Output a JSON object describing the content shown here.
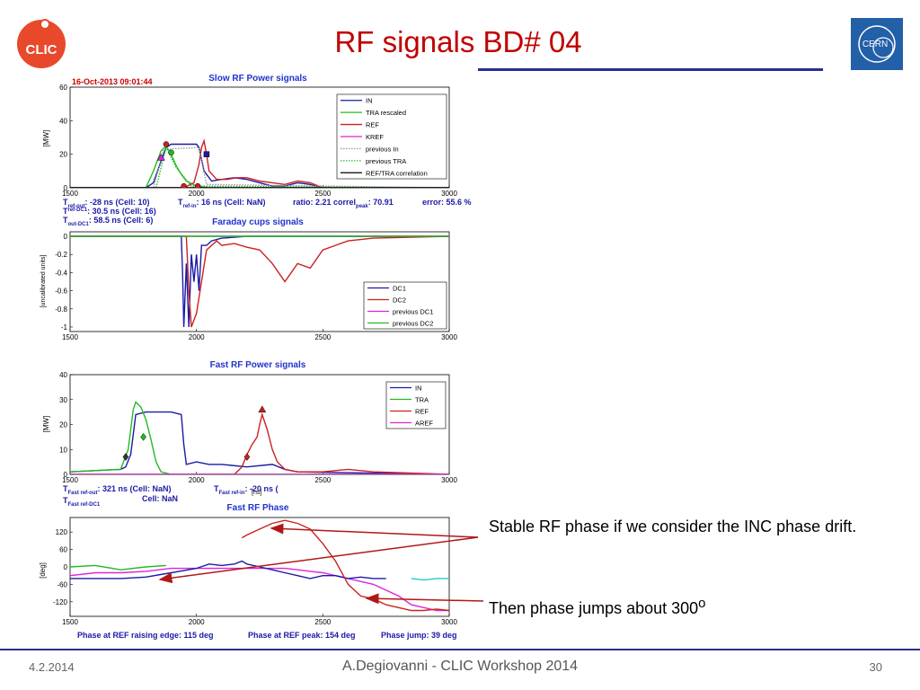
{
  "slide": {
    "title": "RF signals BD# 04",
    "annotation_1": "Stable RF phase if we consider the INC phase drift.",
    "annotation_2_prefix": "Then phase jumps about 300",
    "annotation_2_sup": "o",
    "clic_logo_text": "CLIC",
    "cern_logo_text": "CERN",
    "footer": {
      "date": "4.2.2014",
      "center": "A.Degiovanni - CLIC Workshop 2014",
      "page": "30"
    }
  },
  "header": {
    "timestamp": "16-Oct-2013   09:01:44"
  },
  "text_rows": {
    "row1": [
      "T",
      "ref-out",
      ": -28 ns (Cell: 10)",
      "T",
      "ref-in",
      ": 16 ns (Cell: NaN)",
      "ratio: 2.21  correl",
      "peak",
      ": 70.91",
      "error: 55.6 %"
    ],
    "row2": [
      "T",
      "ref-DC1",
      ": 30.5 ns (Cell: 16)"
    ],
    "row3": [
      "T",
      "out-DC1",
      ": 58.5 ns (Cell: 6)"
    ],
    "row4": [
      "T",
      "Fast ref-out",
      ": 321 ns   (Cell: NaN)",
      "T",
      "Fast ref-in",
      ": -20 ns (",
      "[ns]"
    ],
    "row5": [
      "T",
      "Fast ref-DC1",
      "Cell: NaN"
    ],
    "bottom": [
      "Phase at REF raising edge: 115 deg",
      "Phase at REF peak: 154 deg",
      "Phase jump: 39 deg"
    ]
  },
  "colors": {
    "blue": "#1a1aa6",
    "green": "#22bb22",
    "red": "#cc2020",
    "magenta": "#dd22dd",
    "cyan": "#22cccc",
    "title_blue": "#2233cc",
    "date_red": "#cc0000"
  },
  "chart_data": [
    {
      "type": "line",
      "title": "Slow RF Power signals",
      "ylabel": "[MW]",
      "xlim": [
        1500,
        3000
      ],
      "ylim": [
        0,
        60
      ],
      "x_ticks": [
        "1500",
        "2000",
        "2500",
        "3000"
      ],
      "y_ticks": [
        "0",
        "20",
        "40",
        "60"
      ],
      "legend_position": "top-right",
      "series": [
        {
          "name": "IN",
          "color": "#1a1aa6",
          "x": [
            1500,
            1800,
            1830,
            1860,
            1880,
            1900,
            1950,
            2000,
            2010,
            2030,
            2060,
            2100,
            2150,
            2200,
            2250,
            2300,
            2350,
            2400,
            2450,
            2500,
            3000
          ],
          "y": [
            0,
            0,
            3,
            16,
            24,
            26,
            26,
            26,
            24,
            10,
            4,
            5,
            6,
            5,
            3,
            1,
            1,
            3,
            2,
            0,
            0
          ]
        },
        {
          "name": "TRA rescaled",
          "color": "#22bb22",
          "x": [
            1500,
            1800,
            1830,
            1860,
            1880,
            1900,
            1920,
            1940,
            1960,
            2000,
            2050,
            3000
          ],
          "y": [
            0,
            0,
            10,
            22,
            25,
            20,
            13,
            8,
            4,
            1,
            0,
            0
          ]
        },
        {
          "name": "REF",
          "color": "#cc2020",
          "x": [
            1500,
            1950,
            1990,
            2010,
            2020,
            2030,
            2040,
            2050,
            2080,
            2120,
            2160,
            2200,
            2250,
            2300,
            2350,
            2400,
            2450,
            2500,
            3000
          ],
          "y": [
            0,
            0,
            3,
            14,
            24,
            28,
            20,
            10,
            5,
            5,
            6,
            6,
            4,
            3,
            2,
            4,
            3,
            0,
            0
          ]
        },
        {
          "name": "KREF",
          "color": "#dd22dd",
          "x": [
            1500,
            3000
          ],
          "y": [
            0,
            0
          ]
        },
        {
          "name": "previous In",
          "color": "#999999",
          "style": "dotted",
          "x": [
            1500,
            1830,
            1870,
            2010,
            2040,
            3000
          ],
          "y": [
            0,
            0,
            23,
            24,
            2,
            0
          ]
        },
        {
          "name": "previous TRA",
          "color": "#22bb22",
          "style": "dotted",
          "x": [
            1500,
            1840,
            1880,
            1920,
            1980,
            3000
          ],
          "y": [
            0,
            0,
            24,
            12,
            1,
            0
          ]
        },
        {
          "name": "REF/TRA correlation",
          "color": "#000000",
          "x": [
            1500,
            3000
          ],
          "y": [
            0,
            0
          ]
        }
      ],
      "markers": [
        {
          "x": 1860,
          "y": 18,
          "color": "#dd22dd",
          "shape": "triangle"
        },
        {
          "x": 1880,
          "y": 26,
          "color": "#cc2020",
          "shape": "circle"
        },
        {
          "x": 1900,
          "y": 21,
          "color": "#22bb22",
          "shape": "circle"
        },
        {
          "x": 1950,
          "y": 1,
          "color": "#cc2020",
          "shape": "circle"
        },
        {
          "x": 2005,
          "y": 1,
          "color": "#cc2020",
          "shape": "circle"
        },
        {
          "x": 2040,
          "y": 20,
          "color": "#1a1aa6",
          "shape": "square"
        }
      ]
    },
    {
      "type": "line",
      "title": "Faraday cups signals",
      "ylabel": "[uncalibrated units]",
      "xlim": [
        1500,
        3000
      ],
      "ylim": [
        -1.05,
        0.05
      ],
      "x_ticks": [
        "1500",
        "2000",
        "2500",
        "3000"
      ],
      "y_ticks": [
        "0",
        "-0.2",
        "-0.4",
        "-0.6",
        "-0.8",
        "-1"
      ],
      "legend_position": "bottom-right",
      "series": [
        {
          "name": "DC1",
          "color": "#1a1aa6",
          "x": [
            1500,
            1940,
            1945,
            1950,
            1960,
            1970,
            1980,
            1990,
            2000,
            2010,
            2020,
            2040,
            2060,
            2100,
            2150,
            2200,
            3000
          ],
          "y": [
            0,
            0,
            -0.4,
            -1,
            -0.3,
            -1,
            -0.2,
            -0.5,
            -0.2,
            -0.6,
            -0.1,
            -0.1,
            -0.05,
            -0.02,
            -0.01,
            0,
            0
          ]
        },
        {
          "name": "DC2",
          "color": "#cc2020",
          "x": [
            1500,
            1960,
            1970,
            1980,
            2000,
            2020,
            2040,
            2080,
            2100,
            2150,
            2200,
            2250,
            2300,
            2350,
            2400,
            2450,
            2500,
            2550,
            2600,
            2700,
            3000
          ],
          "y": [
            0,
            0,
            -0.6,
            -1,
            -0.85,
            -0.5,
            -0.15,
            -0.05,
            -0.1,
            -0.08,
            -0.12,
            -0.15,
            -0.3,
            -0.5,
            -0.3,
            -0.35,
            -0.15,
            -0.1,
            -0.05,
            -0.02,
            0
          ]
        },
        {
          "name": "previous DC1",
          "color": "#dd22dd",
          "x": [
            1500,
            3000
          ],
          "y": [
            0,
            0
          ]
        },
        {
          "name": "previous DC2",
          "color": "#22bb22",
          "x": [
            1500,
            3000
          ],
          "y": [
            0,
            0
          ]
        }
      ]
    },
    {
      "type": "line",
      "title": "Fast RF Power signals",
      "ylabel": "[MW]",
      "xlim": [
        1500,
        3000
      ],
      "ylim": [
        0,
        40
      ],
      "x_ticks": [
        "1500",
        "2000",
        "2500",
        "3000"
      ],
      "y_ticks": [
        "0",
        "10",
        "20",
        "30",
        "40"
      ],
      "legend_position": "top-right",
      "series": [
        {
          "name": "IN",
          "color": "#1a1aa6",
          "x": [
            1500,
            1700,
            1720,
            1740,
            1760,
            1800,
            1850,
            1900,
            1940,
            1950,
            1960,
            2000,
            2050,
            2100,
            2200,
            2300,
            2350,
            2400,
            3000
          ],
          "y": [
            1,
            2,
            3,
            8,
            24,
            25,
            25,
            25,
            24,
            12,
            4,
            5,
            4,
            4,
            3,
            4,
            2,
            1,
            0
          ]
        },
        {
          "name": "TRA",
          "color": "#22bb22",
          "x": [
            1500,
            1700,
            1730,
            1750,
            1760,
            1780,
            1800,
            1820,
            1840,
            1860,
            1900,
            3000
          ],
          "y": [
            1,
            2,
            10,
            26,
            29,
            27,
            22,
            14,
            5,
            1,
            0,
            0
          ]
        },
        {
          "name": "REF",
          "color": "#cc2020",
          "x": [
            1500,
            2150,
            2180,
            2200,
            2220,
            2240,
            2250,
            2260,
            2280,
            2300,
            2320,
            2350,
            2400,
            2500,
            2600,
            2700,
            3000
          ],
          "y": [
            0,
            0,
            3,
            8,
            12,
            15,
            20,
            24,
            18,
            10,
            5,
            2,
            1,
            1,
            2,
            1,
            0
          ]
        },
        {
          "name": "AREF",
          "color": "#dd22dd",
          "x": [
            1500,
            3000
          ],
          "y": [
            0,
            0
          ]
        }
      ],
      "markers": [
        {
          "x": 1720,
          "y": 7,
          "color": "#333333",
          "shape": "diamond"
        },
        {
          "x": 1790,
          "y": 15,
          "color": "#22bb22",
          "shape": "diamond"
        },
        {
          "x": 2200,
          "y": 7,
          "color": "#cc2020",
          "shape": "diamond"
        },
        {
          "x": 2260,
          "y": 26,
          "color": "#cc2020",
          "shape": "triangle"
        }
      ]
    },
    {
      "type": "line",
      "title": "Fast RF Phase",
      "ylabel": "[deg]",
      "xlim": [
        1500,
        3000
      ],
      "ylim": [
        -170,
        170
      ],
      "x_ticks": [
        "1500",
        "2000",
        "2500",
        "3000"
      ],
      "y_ticks": [
        "120",
        "60",
        "0",
        "-60",
        "-120"
      ],
      "series": [
        {
          "name": "green",
          "color": "#22bb22",
          "x": [
            1500,
            1600,
            1700,
            1800,
            1880
          ],
          "y": [
            0,
            5,
            -10,
            0,
            5
          ]
        },
        {
          "name": "magenta",
          "color": "#dd22dd",
          "x": [
            1500,
            1600,
            1700,
            1800,
            1900,
            2000,
            2100,
            2150,
            2200,
            2250,
            2300,
            2350,
            2400,
            2450,
            2500,
            2550,
            2600,
            2650,
            2700,
            2750,
            2800,
            2850,
            2900,
            2950,
            3000
          ],
          "y": [
            -30,
            -20,
            -20,
            -15,
            -5,
            -5,
            -5,
            -5,
            -5,
            -5,
            -5,
            -5,
            -10,
            -15,
            -20,
            -30,
            -40,
            -50,
            -60,
            -80,
            -100,
            -130,
            -140,
            -150,
            -150
          ]
        },
        {
          "name": "blue",
          "color": "#1a1aa6",
          "x": [
            1500,
            1600,
            1700,
            1800,
            1900,
            2000,
            2050,
            2100,
            2150,
            2180,
            2200,
            2250,
            2300,
            2350,
            2400,
            2450,
            2500,
            2550,
            2600,
            2650,
            2700,
            2750
          ],
          "y": [
            -40,
            -40,
            -40,
            -35,
            -20,
            -5,
            10,
            5,
            10,
            20,
            10,
            0,
            -10,
            -20,
            -30,
            -40,
            -30,
            -30,
            -40,
            -35,
            -40,
            -40
          ]
        },
        {
          "name": "red",
          "color": "#cc2020",
          "x": [
            2180,
            2200,
            2250,
            2300,
            2350,
            2400,
            2450,
            2500,
            2550,
            2600,
            2650,
            2700,
            2750,
            2800,
            2850,
            2900,
            2950,
            3000
          ],
          "y": [
            100,
            110,
            130,
            150,
            160,
            150,
            130,
            80,
            20,
            -60,
            -100,
            -110,
            -130,
            -140,
            -150,
            -150,
            -145,
            -150
          ]
        },
        {
          "name": "cyan",
          "color": "#22cccc",
          "x": [
            2850,
            2900,
            2950,
            3000
          ],
          "y": [
            -40,
            -45,
            -40,
            -40
          ]
        }
      ]
    }
  ]
}
